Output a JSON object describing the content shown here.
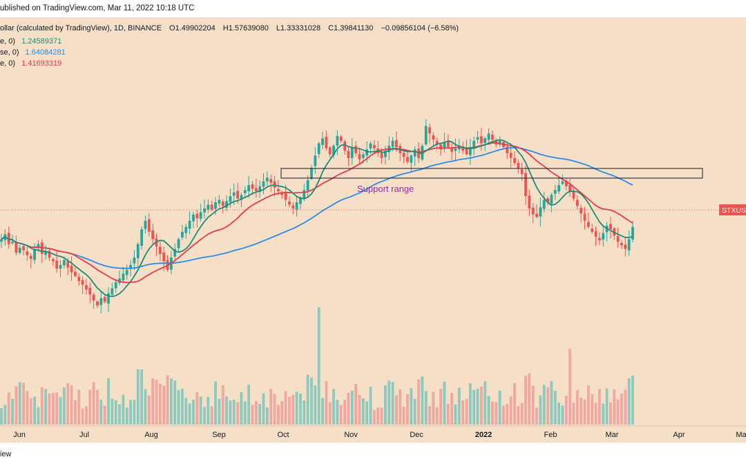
{
  "header": {
    "published": "ublished on TradingView.com, Mar 11, 2022 10:18 UTC"
  },
  "legend": {
    "symbol": "ollar (calculated by TradingView), 1D, BINANCE",
    "open": "O1.49902204",
    "high": "H1.57639080",
    "low": "L1.33331028",
    "close": "C1.39841130",
    "change": "−0.09856104 (−6.58%)",
    "ma": [
      {
        "label": "e, 0)",
        "value": "1.24589371",
        "color": "#1e8a78"
      },
      {
        "label": "se, 0)",
        "value": "1.64084281",
        "color": "#2a8ae8"
      },
      {
        "label": "e, 0)",
        "value": "1.41693319",
        "color": "#e83a4a"
      }
    ]
  },
  "footer": {
    "brand": "iew"
  },
  "chart_data": {
    "type": "candlestick",
    "symbol_tag": "STXUSD",
    "annotation": "Support range",
    "x_tick_labels": [
      "Jun",
      "Jul",
      "Aug",
      "Sep",
      "Oct",
      "Nov",
      "Dec",
      "2022",
      "Feb",
      "Mar",
      "Apr",
      "Ma"
    ],
    "bold_tick": "2022",
    "last_close": 1.3984113,
    "ma_last": {
      "green": 1.24589371,
      "blue": 1.64084281,
      "red": 1.41693319
    },
    "colors": {
      "up": "#26a69a",
      "down": "#ef5350",
      "ma_green": "#1e8a78",
      "ma_blue": "#2a8ae8",
      "ma_red": "#e83a4a",
      "vol_up": "#8cc9bf",
      "vol_down": "#f0a7a2",
      "annotation": "#9c27b0",
      "background": "#f6dfc7"
    },
    "candles_close": [
      1.3,
      1.34,
      1.26,
      1.28,
      1.19,
      1.23,
      1.21,
      1.17,
      1.14,
      1.22,
      1.26,
      1.18,
      1.2,
      1.15,
      1.12,
      1.06,
      1.09,
      1.13,
      1.07,
      1.03,
      1.0,
      0.96,
      0.93,
      0.89,
      0.85,
      0.8,
      0.76,
      0.82,
      0.79,
      0.86,
      0.9,
      0.95,
      0.98,
      1.02,
      1.05,
      1.09,
      1.15,
      1.26,
      1.38,
      1.45,
      1.36,
      1.3,
      1.24,
      1.18,
      1.12,
      1.05,
      1.15,
      1.22,
      1.3,
      1.36,
      1.4,
      1.45,
      1.5,
      1.47,
      1.52,
      1.55,
      1.58,
      1.54,
      1.6,
      1.62,
      1.57,
      1.61,
      1.65,
      1.68,
      1.63,
      1.66,
      1.7,
      1.74,
      1.71,
      1.69,
      1.73,
      1.77,
      1.8,
      1.76,
      1.72,
      1.69,
      1.66,
      1.62,
      1.58,
      1.55,
      1.6,
      1.64,
      1.7,
      1.78,
      1.88,
      1.98,
      2.08,
      2.12,
      2.04,
      1.99,
      2.06,
      2.14,
      2.1,
      2.02,
      1.96,
      2.05,
      2.0,
      1.95,
      1.99,
      2.03,
      2.08,
      2.04,
      2.0,
      1.96,
      2.02,
      2.06,
      2.1,
      2.05,
      2.0,
      1.97,
      1.93,
      1.98,
      2.03,
      1.96,
      2.06,
      2.22,
      2.16,
      2.11,
      2.07,
      2.03,
      2.09,
      2.05,
      2.01,
      2.04,
      2.06,
      2.02,
      1.99,
      2.05,
      2.1,
      2.13,
      2.08,
      2.12,
      2.16,
      2.11,
      2.07,
      2.1,
      2.05,
      2.0,
      1.96,
      1.92,
      1.88,
      1.83,
      1.65,
      1.55,
      1.5,
      1.48,
      1.56,
      1.62,
      1.6,
      1.66,
      1.7,
      1.74,
      1.77,
      1.73,
      1.69,
      1.63,
      1.57,
      1.51,
      1.45,
      1.4,
      1.36,
      1.32,
      1.29,
      1.35,
      1.41,
      1.38,
      1.33,
      1.28,
      1.25,
      1.22,
      1.3,
      1.4
    ]
  }
}
